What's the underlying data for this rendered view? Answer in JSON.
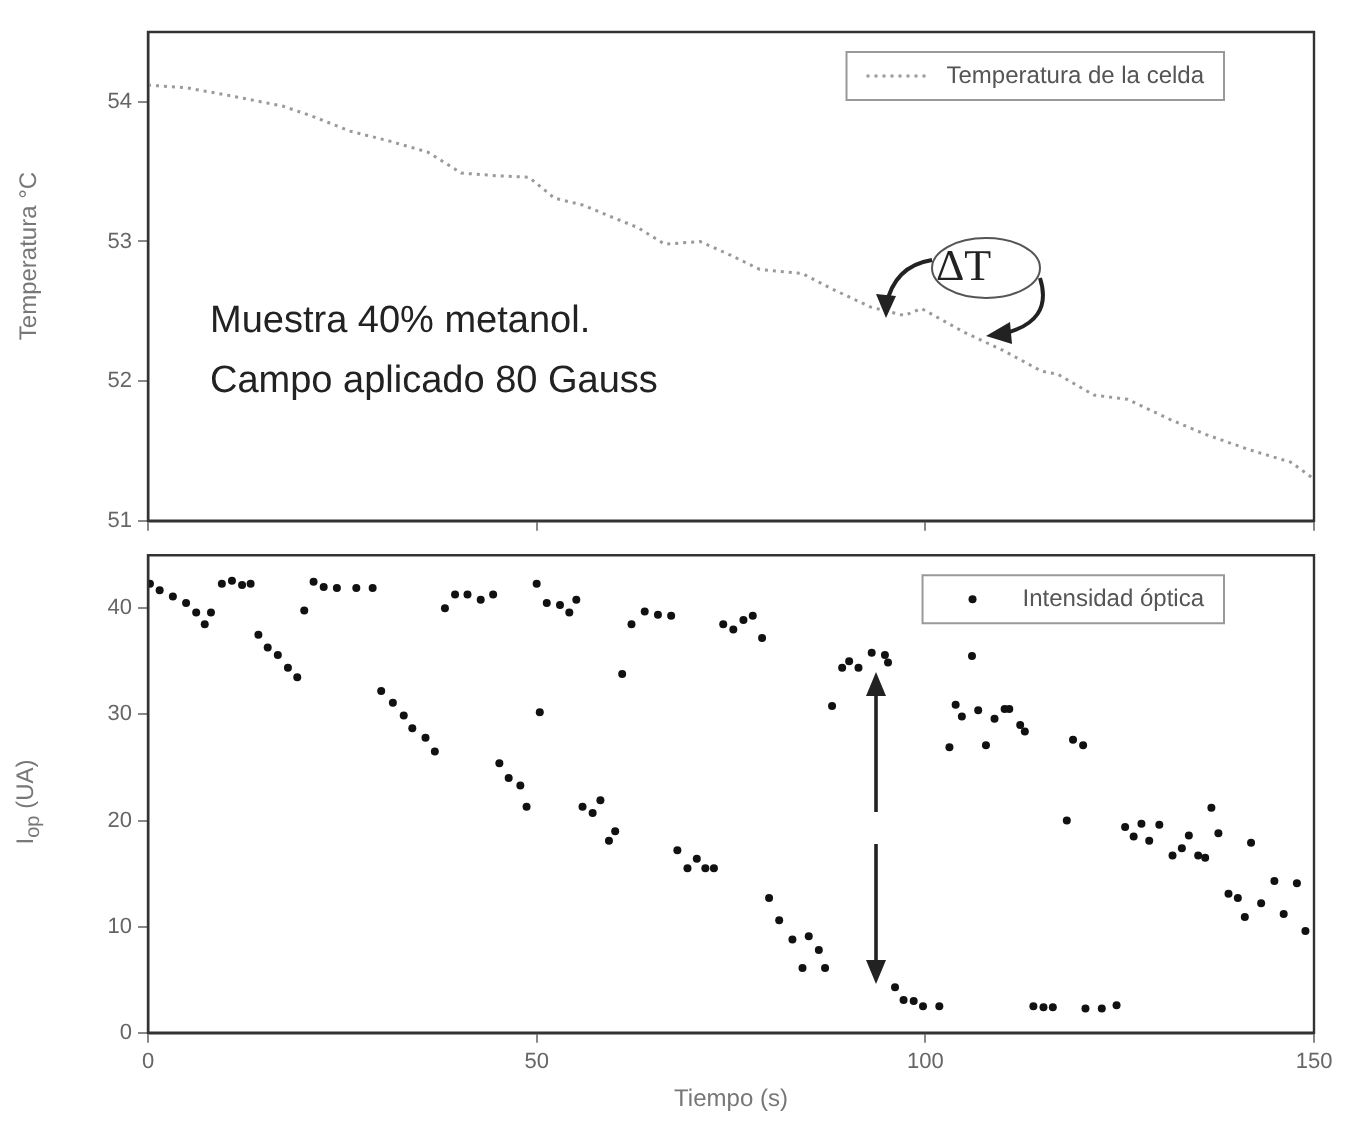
{
  "chart_data": [
    {
      "type": "line",
      "ylabel": "Temperatura °C",
      "annotations": [
        "Muestra 40% metanol.",
        "Campo aplicado 80 Gauss",
        "ΔT"
      ],
      "series": [
        {
          "name": "Temperatura de la celda",
          "color": "#9a9a9a",
          "x": [
            0,
            5,
            10,
            17.3,
            21,
            26,
            31,
            36,
            40.3,
            45,
            49,
            52.3,
            56,
            59,
            63,
            66.5,
            71,
            75,
            78.7,
            84.2,
            88,
            93,
            97.3,
            99.5,
            105,
            110,
            115,
            117,
            121.7,
            126,
            131.7,
            136,
            141.6,
            147,
            150
          ],
          "values": [
            54.12,
            54.1,
            54.05,
            53.97,
            53.9,
            53.79,
            53.72,
            53.64,
            53.49,
            53.47,
            53.46,
            53.31,
            53.26,
            53.19,
            53.1,
            52.98,
            53.0,
            52.9,
            52.8,
            52.77,
            52.66,
            52.53,
            52.47,
            52.52,
            52.35,
            52.22,
            52.07,
            52.05,
            51.9,
            51.87,
            51.72,
            51.62,
            51.51,
            51.42,
            51.3
          ]
        }
      ],
      "xlim": [
        0,
        150
      ],
      "xticks": [
        0,
        50,
        100,
        150
      ],
      "ylim": [
        51,
        54.5
      ],
      "yticks": [
        51,
        52,
        53,
        54
      ],
      "tick_labels": "y",
      "legend": "top right",
      "line_style": "dotted",
      "marker": "none"
    },
    {
      "type": "scatter",
      "xlabel": "Tiempo (s)",
      "ylabel": "I$_{op}$ (UA)",
      "series": [
        {
          "name": "Intensidad óptica",
          "color": "#111111",
          "x": [
            0.25,
            1.5,
            3.2,
            4.9,
            6.2,
            7.3,
            8.1,
            9.5,
            10.8,
            12.1,
            13.2,
            14.2,
            15.4,
            16.7,
            18,
            19.2,
            20.1,
            21.3,
            22.6,
            24.3,
            26.8,
            28.9,
            30,
            31.5,
            32.9,
            34,
            35.7,
            36.9,
            38.2,
            39.5,
            41.1,
            42.8,
            44.4,
            45.2,
            46.4,
            47.9,
            48.7,
            50,
            50.4,
            51.3,
            53,
            54.2,
            55.1,
            55.9,
            57.2,
            58.2,
            59.3,
            60.1,
            61,
            62.2,
            63.9,
            65.6,
            67.3,
            68.1,
            69.4,
            70.6,
            71.7,
            72.8,
            74,
            75.3,
            76.6,
            77.8,
            79,
            79.9,
            81.2,
            82.9,
            84.2,
            85,
            86.3,
            87.1,
            88,
            89.3,
            90.2,
            91.4,
            93.1,
            94.8,
            95.2,
            96.1,
            97.2,
            98.5,
            99.7,
            101.8,
            103.1,
            103.9,
            104.7,
            106,
            106.8,
            107.8,
            108.9,
            110.2,
            110.8,
            112.2,
            112.8,
            113.9,
            115.2,
            116.4,
            118.2,
            119,
            120.3,
            120.6,
            122.7,
            124.6,
            125.7,
            126.8,
            127.8,
            128.8,
            130.1,
            131.8,
            133,
            133.9,
            135.1,
            136,
            136.8,
            137.7,
            139,
            140.2,
            141.1,
            141.9,
            143.2,
            144.9,
            146.1,
            147.8,
            148.9
          ],
          "values": [
            42.3,
            41.7,
            41.1,
            40.5,
            39.6,
            38.5,
            39.6,
            42.3,
            42.6,
            42.2,
            42.3,
            37.5,
            36.3,
            35.6,
            34.4,
            33.5,
            39.8,
            42.5,
            42,
            41.9,
            41.9,
            41.9,
            32.2,
            31.1,
            29.9,
            28.7,
            27.8,
            26.5,
            40,
            41.3,
            41.3,
            40.8,
            41.3,
            25.4,
            24,
            23.3,
            21.3,
            42.3,
            30.2,
            40.5,
            40.3,
            39.6,
            40.8,
            21.3,
            20.7,
            21.9,
            18.1,
            19,
            33.8,
            38.5,
            39.7,
            39.4,
            39.3,
            17.2,
            15.5,
            16.4,
            15.5,
            15.5,
            38.5,
            38,
            38.9,
            39.3,
            37.2,
            12.7,
            10.6,
            8.8,
            6.1,
            9.1,
            7.8,
            6.1,
            30.8,
            34.4,
            35,
            34.4,
            35.8,
            35.6,
            34.9,
            4.3,
            3.1,
            3,
            2.5,
            2.5,
            26.9,
            30.9,
            29.8,
            35.5,
            30.4,
            27.1,
            29.6,
            30.5,
            30.5,
            29,
            28.4,
            2.5,
            2.4,
            2.4,
            20,
            27.6,
            27.1,
            2.3,
            2.3,
            2.6,
            19.4,
            18.5,
            19.7,
            18.1,
            19.6,
            16.7,
            17.4,
            18.6,
            16.7,
            16.5,
            21.2,
            18.8,
            13.1,
            12.7,
            10.9,
            17.9,
            12.2,
            14.3,
            11.2,
            14.1,
            9.6
          ]
        }
      ],
      "xlim": [
        0,
        150
      ],
      "xticks": [
        0,
        50,
        100,
        150
      ],
      "ylim": [
        0,
        45
      ],
      "yticks": [
        0,
        10,
        20,
        30,
        40
      ],
      "legend": "top right",
      "marker": "circle"
    }
  ]
}
